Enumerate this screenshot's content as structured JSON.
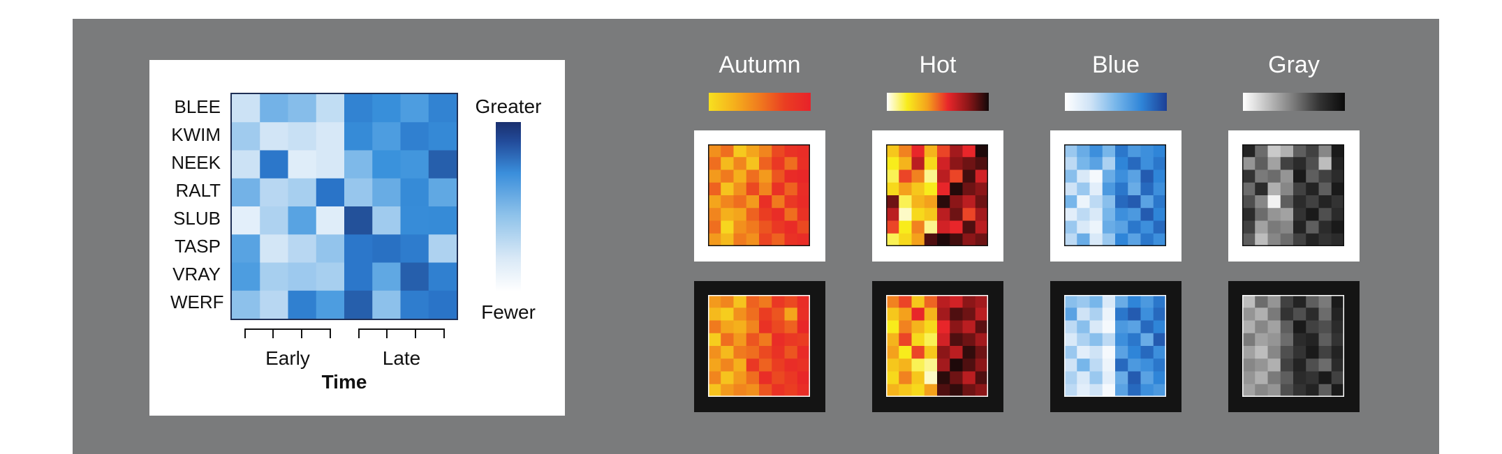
{
  "colors": {
    "panel_bg": "#7a7b7c",
    "card_bg": "#ffffff",
    "white_frame": "#ffffff",
    "black_frame": "#141414"
  },
  "chart_data": [
    {
      "type": "heatmap",
      "title": "",
      "xlabel": "Time",
      "ylabel": "",
      "rows": [
        "BLEE",
        "KWIM",
        "NEEK",
        "RALT",
        "SLUB",
        "TASP",
        "VRAY",
        "WERF"
      ],
      "column_groups": [
        {
          "label": "Early",
          "columns": 4
        },
        {
          "label": "Late",
          "columns": 4
        }
      ],
      "values": [
        [
          0.18,
          0.45,
          0.4,
          0.22,
          0.7,
          0.62,
          0.55,
          0.7
        ],
        [
          0.32,
          0.15,
          0.2,
          0.12,
          0.65,
          0.55,
          0.72,
          0.66
        ],
        [
          0.18,
          0.78,
          0.08,
          0.12,
          0.42,
          0.6,
          0.58,
          0.92
        ],
        [
          0.45,
          0.25,
          0.3,
          0.8,
          0.35,
          0.48,
          0.65,
          0.5
        ],
        [
          0.06,
          0.28,
          0.52,
          0.08,
          1.0,
          0.32,
          0.64,
          0.65
        ],
        [
          0.52,
          0.14,
          0.25,
          0.36,
          0.78,
          0.82,
          0.75,
          0.28
        ],
        [
          0.55,
          0.3,
          0.33,
          0.3,
          0.78,
          0.5,
          0.92,
          0.72
        ],
        [
          0.38,
          0.25,
          0.72,
          0.55,
          0.92,
          0.38,
          0.74,
          0.8
        ]
      ],
      "colorbar": {
        "top_label": "Greater",
        "bottom_label": "Fewer"
      }
    }
  ],
  "schemes": [
    {
      "name": "Autumn",
      "gradient": [
        "#f7e020",
        "#f5b01c",
        "#f07a1e",
        "#ea3d22",
        "#e8222a"
      ],
      "white_grid": [
        [
          0.4,
          0.55,
          0.12,
          0.3,
          0.45,
          0.7,
          0.85,
          0.9
        ],
        [
          0.55,
          0.2,
          0.45,
          0.15,
          0.6,
          0.8,
          0.55,
          0.88
        ],
        [
          0.35,
          0.5,
          0.25,
          0.55,
          0.35,
          0.65,
          0.92,
          0.95
        ],
        [
          0.6,
          0.15,
          0.4,
          0.7,
          0.45,
          0.85,
          0.6,
          0.9
        ],
        [
          0.3,
          0.45,
          0.55,
          0.35,
          0.88,
          0.5,
          0.8,
          0.92
        ],
        [
          0.45,
          0.25,
          0.3,
          0.6,
          0.75,
          0.9,
          0.55,
          0.85
        ],
        [
          0.55,
          0.05,
          0.4,
          0.5,
          0.65,
          0.8,
          0.92,
          0.7
        ],
        [
          0.35,
          0.2,
          0.5,
          0.4,
          0.72,
          0.6,
          0.85,
          0.9
        ]
      ],
      "black_grid": [
        [
          0.35,
          0.45,
          0.15,
          0.6,
          0.5,
          0.8,
          0.7,
          0.9
        ],
        [
          0.2,
          0.1,
          0.4,
          0.55,
          0.75,
          0.65,
          0.3,
          0.88
        ],
        [
          0.5,
          0.3,
          0.25,
          0.45,
          0.85,
          0.7,
          0.6,
          0.95
        ],
        [
          0.1,
          0.55,
          0.35,
          0.65,
          0.5,
          0.9,
          0.8,
          0.75
        ],
        [
          0.4,
          0.2,
          0.5,
          0.55,
          0.7,
          0.85,
          0.65,
          0.92
        ],
        [
          0.3,
          0.45,
          0.25,
          0.8,
          0.6,
          0.75,
          0.9,
          0.85
        ],
        [
          0.45,
          0.15,
          0.35,
          0.55,
          0.9,
          0.7,
          0.8,
          0.95
        ],
        [
          0.15,
          0.35,
          0.45,
          0.4,
          0.65,
          0.85,
          0.75,
          0.9
        ]
      ]
    },
    {
      "name": "Hot",
      "gradient": [
        "#ffffff",
        "#f8ec1c",
        "#f4a11c",
        "#e8262a",
        "#8c1618",
        "#120808"
      ],
      "white_grid": [
        [
          0.3,
          0.45,
          0.6,
          0.35,
          0.55,
          0.75,
          0.6,
          0.98
        ],
        [
          0.2,
          0.35,
          0.7,
          0.25,
          0.65,
          0.8,
          0.85,
          0.9
        ],
        [
          0.15,
          0.55,
          0.45,
          0.1,
          0.7,
          0.55,
          0.92,
          0.65
        ],
        [
          0.25,
          0.4,
          0.3,
          0.2,
          0.6,
          0.97,
          0.85,
          0.8
        ],
        [
          0.85,
          0.15,
          0.35,
          0.4,
          0.96,
          0.8,
          0.7,
          0.85
        ],
        [
          0.7,
          0.05,
          0.25,
          0.3,
          0.7,
          0.85,
          0.55,
          0.75
        ],
        [
          0.55,
          0.2,
          0.45,
          0.1,
          0.65,
          0.6,
          0.9,
          0.7
        ],
        [
          0.15,
          0.25,
          0.4,
          0.9,
          0.98,
          0.92,
          0.8,
          0.85
        ]
      ],
      "black_grid": [
        [
          0.45,
          0.55,
          0.3,
          0.5,
          0.7,
          0.65,
          0.8,
          0.75
        ],
        [
          0.3,
          0.4,
          0.6,
          0.35,
          0.75,
          0.9,
          0.85,
          0.7
        ],
        [
          0.2,
          0.45,
          0.35,
          0.25,
          0.6,
          0.8,
          0.7,
          0.88
        ],
        [
          0.35,
          0.55,
          0.25,
          0.15,
          0.65,
          0.9,
          0.85,
          0.75
        ],
        [
          0.4,
          0.2,
          0.55,
          0.3,
          0.8,
          0.7,
          0.95,
          0.85
        ],
        [
          0.3,
          0.35,
          0.15,
          0.1,
          0.75,
          0.98,
          0.9,
          0.8
        ],
        [
          0.25,
          0.45,
          0.3,
          0.05,
          0.96,
          0.85,
          0.7,
          0.9
        ],
        [
          0.35,
          0.3,
          0.25,
          0.4,
          0.9,
          0.95,
          0.85,
          0.8
        ]
      ]
    },
    {
      "name": "Blue",
      "gradient": [
        "#ffffff",
        "#cfe3f6",
        "#77b6ea",
        "#2f85d8",
        "#1c3f96"
      ],
      "white_grid": [
        [
          0.4,
          0.55,
          0.7,
          0.5,
          0.8,
          0.65,
          0.7,
          0.75
        ],
        [
          0.3,
          0.5,
          0.6,
          0.35,
          0.75,
          0.85,
          0.7,
          0.8
        ],
        [
          0.45,
          0.2,
          0.05,
          0.55,
          0.7,
          0.6,
          0.9,
          0.75
        ],
        [
          0.25,
          0.4,
          0.15,
          0.65,
          0.8,
          0.55,
          0.85,
          0.7
        ],
        [
          0.5,
          0.1,
          0.3,
          0.45,
          0.85,
          0.9,
          0.6,
          0.8
        ],
        [
          0.15,
          0.3,
          0.2,
          0.5,
          0.7,
          0.65,
          0.9,
          0.75
        ],
        [
          0.4,
          0.2,
          0.1,
          0.55,
          0.6,
          0.8,
          0.7,
          0.85
        ],
        [
          0.3,
          0.55,
          0.2,
          0.4,
          0.75,
          0.6,
          0.8,
          0.7
        ]
      ],
      "black_grid": [
        [
          0.45,
          0.4,
          0.5,
          0.2,
          0.55,
          0.75,
          0.65,
          0.8
        ],
        [
          0.6,
          0.25,
          0.35,
          0.1,
          0.8,
          0.9,
          0.7,
          0.85
        ],
        [
          0.3,
          0.45,
          0.2,
          0.05,
          0.65,
          0.6,
          0.85,
          0.75
        ],
        [
          0.2,
          0.35,
          0.45,
          0.3,
          0.7,
          0.8,
          0.55,
          0.9
        ],
        [
          0.4,
          0.15,
          0.25,
          0.05,
          0.6,
          0.75,
          0.85,
          0.7
        ],
        [
          0.25,
          0.5,
          0.3,
          0.1,
          0.85,
          0.65,
          0.7,
          0.8
        ],
        [
          0.35,
          0.2,
          0.4,
          0.15,
          0.55,
          0.9,
          0.6,
          0.75
        ],
        [
          0.3,
          0.15,
          0.25,
          0.05,
          0.6,
          0.85,
          0.7,
          0.65
        ]
      ]
    },
    {
      "name": "Gray",
      "gradient": [
        "#ffffff",
        "#bdbdbd",
        "#7a7a7a",
        "#333333",
        "#0a0a0a"
      ],
      "white_grid": [
        [
          0.85,
          0.55,
          0.2,
          0.3,
          0.6,
          0.7,
          0.45,
          0.9
        ],
        [
          0.4,
          0.6,
          0.35,
          0.7,
          0.8,
          0.65,
          0.25,
          0.85
        ],
        [
          0.75,
          0.5,
          0.55,
          0.4,
          0.9,
          0.6,
          0.7,
          0.8
        ],
        [
          0.55,
          0.8,
          0.3,
          0.45,
          0.7,
          0.85,
          0.6,
          0.9
        ],
        [
          0.65,
          0.45,
          0.05,
          0.6,
          0.8,
          0.7,
          0.85,
          0.75
        ],
        [
          0.8,
          0.55,
          0.4,
          0.35,
          0.75,
          0.9,
          0.65,
          0.8
        ],
        [
          0.7,
          0.35,
          0.5,
          0.45,
          0.85,
          0.6,
          0.8,
          0.9
        ],
        [
          0.6,
          0.25,
          0.45,
          0.55,
          0.7,
          0.85,
          0.75,
          0.8
        ]
      ],
      "black_grid": [
        [
          0.25,
          0.55,
          0.4,
          0.7,
          0.85,
          0.6,
          0.5,
          0.9
        ],
        [
          0.4,
          0.3,
          0.5,
          0.75,
          0.65,
          0.8,
          0.55,
          0.85
        ],
        [
          0.3,
          0.45,
          0.35,
          0.6,
          0.9,
          0.7,
          0.65,
          0.8
        ],
        [
          0.5,
          0.35,
          0.4,
          0.55,
          0.8,
          0.85,
          0.6,
          0.75
        ],
        [
          0.35,
          0.25,
          0.45,
          0.65,
          0.75,
          0.9,
          0.7,
          0.85
        ],
        [
          0.45,
          0.4,
          0.3,
          0.7,
          0.85,
          0.65,
          0.55,
          0.8
        ],
        [
          0.4,
          0.3,
          0.5,
          0.6,
          0.8,
          0.75,
          0.9,
          0.7
        ],
        [
          0.35,
          0.45,
          0.4,
          0.65,
          0.75,
          0.85,
          0.6,
          0.9
        ]
      ]
    }
  ]
}
